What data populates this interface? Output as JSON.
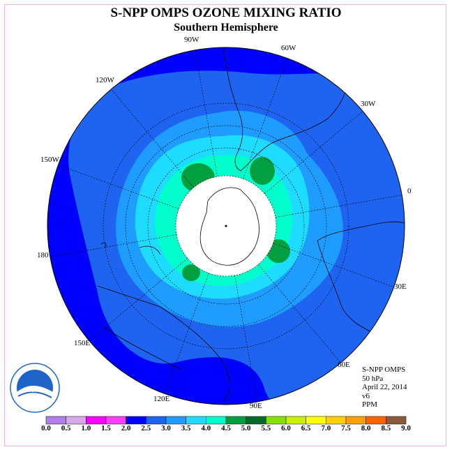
{
  "header": {
    "title": "S-NPP OMPS OZONE MIXING RATIO",
    "subtitle": "Southern Hemisphere"
  },
  "longitude_labels": [
    "90W",
    "60W",
    "30W",
    "0",
    "30E",
    "60E",
    "90E",
    "120E",
    "150E",
    "180",
    "150W",
    "120W"
  ],
  "info": {
    "instrument": "S-NPP OMPS",
    "level": "50 hPa",
    "date": "April 22, 2014",
    "version": "v6",
    "units": "PPM"
  },
  "logo": {
    "text": "NOAA",
    "ring_text": "NATIONAL OCEANIC AND ATMOSPHERIC ADMINISTRATION · U.S. DEPARTMENT OF COMMERCE"
  },
  "colorbar": {
    "ticks": [
      "0.0",
      "0.5",
      "1.0",
      "1.5",
      "2.0",
      "2.5",
      "3.0",
      "3.5",
      "4.0",
      "4.5",
      "5.0",
      "5.5",
      "6.0",
      "6.5",
      "7.0",
      "7.5",
      "8.0",
      "8.5",
      "9.0"
    ],
    "colors": [
      "#b080e8",
      "#d8a8e8",
      "#ff00ff",
      "#ff3cff",
      "#0000ff",
      "#1e64f0",
      "#1e9cff",
      "#1edcff",
      "#00ffcc",
      "#00a040",
      "#006a2a",
      "#88e000",
      "#c8f000",
      "#ffff00",
      "#ffd000",
      "#ffa000",
      "#ff6400",
      "#ff0000",
      "#8b5a3a"
    ]
  },
  "field_colors": {
    "band_2_0": "#0000ff",
    "band_2_5": "#1e64f0",
    "band_3_0": "#1e9cff",
    "band_3_5": "#1edcff",
    "band_4_0": "#00ffcc",
    "band_4_5": "#00a040",
    "band_5_0": "#006a2a",
    "missing": "#ffffff"
  }
}
